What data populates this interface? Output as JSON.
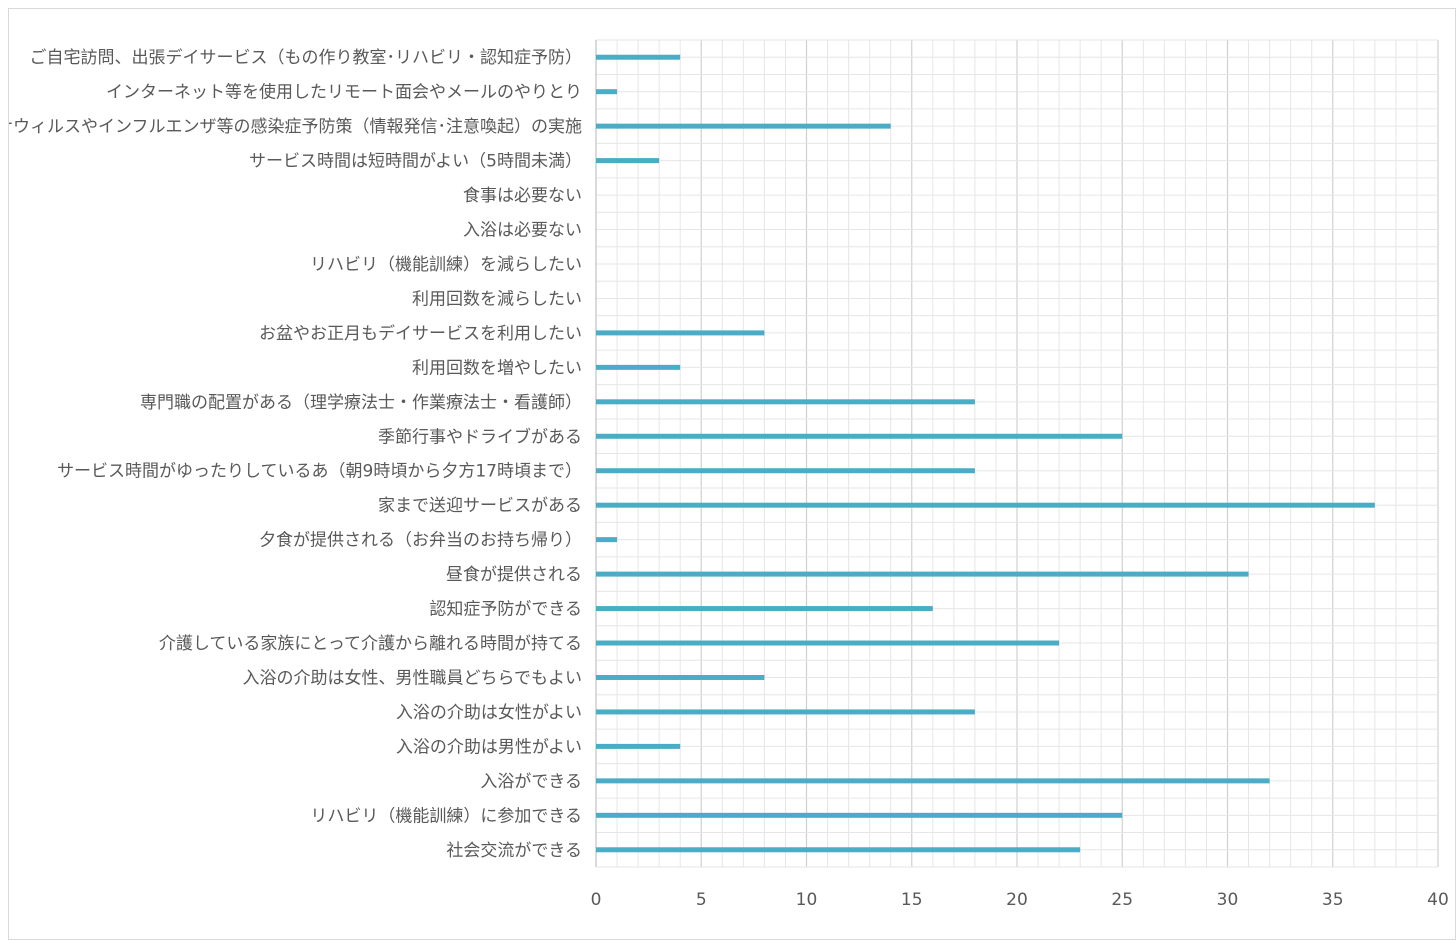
{
  "chart_data": {
    "type": "bar",
    "orientation": "horizontal",
    "categories": [
      "ご自宅訪問、出張デイサービス（もの作り教室･リハビリ・認知症予防）",
      "インターネット等を使用したリモート面会やメールのやりとり",
      "新型コロナウィルスやインフルエンザ等の感染症予防策（情報発信･注意喚起）の実施",
      "サービス時間は短時間がよい（5時間未満）",
      "食事は必要ない",
      "入浴は必要ない",
      "リハビリ（機能訓練）を減らしたい",
      "利用回数を減らしたい",
      "お盆やお正月もデイサービスを利用したい",
      "利用回数を増やしたい",
      "専門職の配置がある（理学療法士・作業療法士・看護師）",
      "季節行事やドライブがある",
      "サービス時間がゆったりしているあ（朝9時頃から夕方17時頃まで）",
      "家まで送迎サービスがある",
      "夕食が提供される（お弁当のお持ち帰り）",
      "昼食が提供される",
      "認知症予防ができる",
      "介護している家族にとって介護から離れる時間が持てる",
      "入浴の介助は女性、男性職員どちらでもよい",
      "入浴の介助は女性がよい",
      "入浴の介助は男性がよい",
      "入浴ができる",
      "リハビリ（機能訓練）に参加できる",
      "社会交流ができる"
    ],
    "values": [
      4,
      1,
      14,
      3,
      0,
      0,
      0,
      0,
      8,
      4,
      18,
      25,
      18,
      37,
      1,
      31,
      16,
      22,
      8,
      18,
      4,
      32,
      25,
      23
    ],
    "xlim": [
      0,
      40
    ],
    "x_ticks": [
      0,
      5,
      10,
      15,
      20,
      25,
      30,
      35,
      40
    ],
    "bar_color": "#4bacc6",
    "grid": true,
    "title": "",
    "xlabel": "",
    "ylabel": "",
    "legend": "none"
  }
}
